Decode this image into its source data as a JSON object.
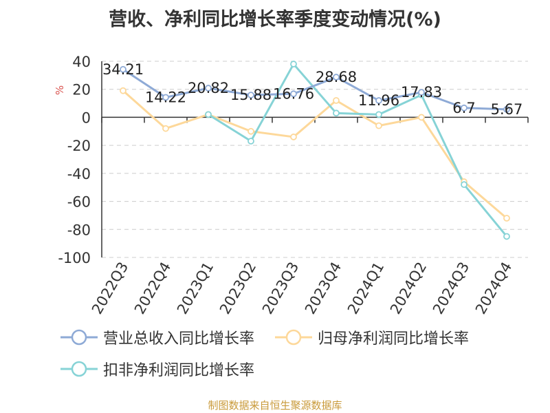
{
  "title": "营收、净利同比增长率季度变动情况(%)",
  "footer": "制图数据来自恒生聚源数据库",
  "chart_data": {
    "type": "line",
    "title": "营收、净利同比增长率季度变动情况(%)",
    "ylabel": "%",
    "ylim": [
      -100,
      40
    ],
    "yticks": [
      40,
      20,
      0,
      -20,
      -40,
      -60,
      -80,
      -100
    ],
    "grid": true,
    "legend_position": "bottom",
    "categories": [
      "2022Q3",
      "2022Q4",
      "2023Q1",
      "2023Q2",
      "2023Q3",
      "2023Q4",
      "2024Q1",
      "2024Q2",
      "2024Q3",
      "2024Q4"
    ],
    "series": [
      {
        "name": "营业总收入同比增长率",
        "color": "#8eaad6",
        "values": [
          34.21,
          14.22,
          20.82,
          15.88,
          16.76,
          28.68,
          11.96,
          17.83,
          6.7,
          5.67
        ],
        "labels": [
          "34.21",
          "14.22",
          "20.82",
          "15.88",
          "16.76",
          "28.68",
          "11.96",
          "17.83",
          "6.7",
          "5.67"
        ]
      },
      {
        "name": "归母净利润同比增长率",
        "color": "#fdd89a",
        "values": [
          19,
          -8,
          2,
          -10,
          -14,
          12,
          -6,
          0,
          -46,
          -72
        ]
      },
      {
        "name": "扣非净利润同比增长率",
        "color": "#86d3d6",
        "values": [
          null,
          null,
          2,
          -17,
          38,
          3,
          2,
          16,
          -48,
          -85
        ]
      }
    ]
  }
}
